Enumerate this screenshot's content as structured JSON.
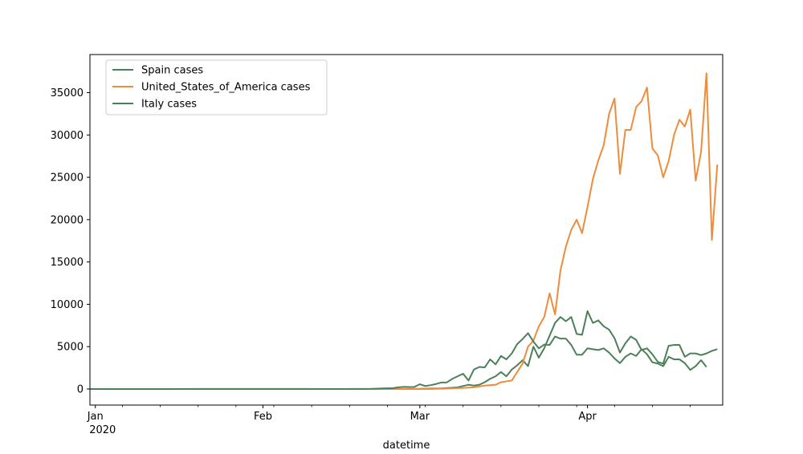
{
  "chart_data": {
    "type": "line",
    "xlabel": "datetime",
    "x_ticks": [
      {
        "date": "2020-01-01",
        "label": "Jan",
        "sublabel": "2020"
      },
      {
        "date": "2020-02-01",
        "label": "Feb",
        "sublabel": ""
      },
      {
        "date": "2020-03-01",
        "label": "Mar",
        "sublabel": ""
      },
      {
        "date": "2020-04-01",
        "label": "Apr",
        "sublabel": ""
      }
    ],
    "xlim": [
      "2019-12-31",
      "2020-04-26"
    ],
    "ylim": [
      -1900,
      39500
    ],
    "y_ticks": [
      0,
      5000,
      10000,
      15000,
      20000,
      25000,
      30000,
      35000
    ],
    "legend_position": "upper-left",
    "series": [
      {
        "name": "Spain cases",
        "color": "#4c8059",
        "points": [
          [
            "2019-12-31",
            0
          ],
          [
            "2020-01-15",
            0
          ],
          [
            "2020-02-01",
            0
          ],
          [
            "2020-02-15",
            0
          ],
          [
            "2020-02-24",
            0
          ],
          [
            "2020-02-26",
            5
          ],
          [
            "2020-02-28",
            10
          ],
          [
            "2020-03-01",
            20
          ],
          [
            "2020-03-03",
            50
          ],
          [
            "2020-03-05",
            70
          ],
          [
            "2020-03-07",
            150
          ],
          [
            "2020-03-08",
            200
          ],
          [
            "2020-03-10",
            500
          ],
          [
            "2020-03-11",
            400
          ],
          [
            "2020-03-12",
            500
          ],
          [
            "2020-03-13",
            800
          ],
          [
            "2020-03-14",
            1200
          ],
          [
            "2020-03-15",
            1500
          ],
          [
            "2020-03-16",
            2000
          ],
          [
            "2020-03-17",
            1500
          ],
          [
            "2020-03-18",
            2300
          ],
          [
            "2020-03-19",
            2800
          ],
          [
            "2020-03-20",
            3400
          ],
          [
            "2020-03-21",
            2700
          ],
          [
            "2020-03-22",
            5000
          ],
          [
            "2020-03-23",
            3700
          ],
          [
            "2020-03-24",
            4800
          ],
          [
            "2020-03-25",
            6300
          ],
          [
            "2020-03-26",
            7800
          ],
          [
            "2020-03-27",
            8500
          ],
          [
            "2020-03-28",
            8000
          ],
          [
            "2020-03-29",
            8500
          ],
          [
            "2020-03-30",
            6500
          ],
          [
            "2020-03-31",
            6400
          ],
          [
            "2020-04-01",
            9200
          ],
          [
            "2020-04-02",
            7800
          ],
          [
            "2020-04-03",
            8100
          ],
          [
            "2020-04-04",
            7400
          ],
          [
            "2020-04-05",
            7000
          ],
          [
            "2020-04-06",
            6000
          ],
          [
            "2020-04-07",
            4300
          ],
          [
            "2020-04-08",
            5400
          ],
          [
            "2020-04-09",
            6200
          ],
          [
            "2020-04-10",
            5800
          ],
          [
            "2020-04-11",
            4600
          ],
          [
            "2020-04-12",
            4800
          ],
          [
            "2020-04-13",
            4100
          ],
          [
            "2020-04-14",
            3200
          ],
          [
            "2020-04-15",
            3000
          ],
          [
            "2020-04-16",
            5100
          ],
          [
            "2020-04-17",
            5200
          ],
          [
            "2020-04-18",
            5200
          ],
          [
            "2020-04-19",
            3800
          ],
          [
            "2020-04-20",
            4200
          ],
          [
            "2020-04-21",
            4200
          ],
          [
            "2020-04-22",
            4000
          ],
          [
            "2020-04-23",
            4200
          ],
          [
            "2020-04-24",
            4500
          ],
          [
            "2020-04-25",
            4700
          ]
        ]
      },
      {
        "name": "United_States_of_America cases",
        "color": "#ef8c3b",
        "points": [
          [
            "2019-12-31",
            0
          ],
          [
            "2020-01-15",
            0
          ],
          [
            "2020-02-01",
            0
          ],
          [
            "2020-02-15",
            0
          ],
          [
            "2020-03-01",
            0
          ],
          [
            "2020-03-03",
            10
          ],
          [
            "2020-03-05",
            30
          ],
          [
            "2020-03-07",
            80
          ],
          [
            "2020-03-09",
            120
          ],
          [
            "2020-03-11",
            200
          ],
          [
            "2020-03-13",
            400
          ],
          [
            "2020-03-15",
            500
          ],
          [
            "2020-03-16",
            800
          ],
          [
            "2020-03-17",
            900
          ],
          [
            "2020-03-18",
            1000
          ],
          [
            "2020-03-19",
            2000
          ],
          [
            "2020-03-20",
            3000
          ],
          [
            "2020-03-21",
            5000
          ],
          [
            "2020-03-22",
            5700
          ],
          [
            "2020-03-23",
            7400
          ],
          [
            "2020-03-24",
            8500
          ],
          [
            "2020-03-25",
            11300
          ],
          [
            "2020-03-26",
            8800
          ],
          [
            "2020-03-27",
            14000
          ],
          [
            "2020-03-28",
            16800
          ],
          [
            "2020-03-29",
            18800
          ],
          [
            "2020-03-30",
            20000
          ],
          [
            "2020-03-31",
            18400
          ],
          [
            "2020-04-01",
            21500
          ],
          [
            "2020-04-02",
            24800
          ],
          [
            "2020-04-03",
            27000
          ],
          [
            "2020-04-04",
            28800
          ],
          [
            "2020-04-05",
            32500
          ],
          [
            "2020-04-06",
            34300
          ],
          [
            "2020-04-07",
            25400
          ],
          [
            "2020-04-08",
            30600
          ],
          [
            "2020-04-09",
            30600
          ],
          [
            "2020-04-10",
            33300
          ],
          [
            "2020-04-11",
            34000
          ],
          [
            "2020-04-12",
            35600
          ],
          [
            "2020-04-13",
            28400
          ],
          [
            "2020-04-14",
            27600
          ],
          [
            "2020-04-15",
            25000
          ],
          [
            "2020-04-16",
            26900
          ],
          [
            "2020-04-17",
            30000
          ],
          [
            "2020-04-18",
            31800
          ],
          [
            "2020-04-19",
            31000
          ],
          [
            "2020-04-20",
            33000
          ],
          [
            "2020-04-21",
            24600
          ],
          [
            "2020-04-22",
            28000
          ],
          [
            "2020-04-23",
            37300
          ],
          [
            "2020-04-24",
            17600
          ],
          [
            "2020-04-25",
            26500
          ]
        ]
      },
      {
        "name": "Italy cases",
        "color": "#4c8059",
        "points": [
          [
            "2019-12-31",
            0
          ],
          [
            "2020-01-15",
            0
          ],
          [
            "2020-01-30",
            2
          ],
          [
            "2020-02-15",
            0
          ],
          [
            "2020-02-21",
            15
          ],
          [
            "2020-02-23",
            60
          ],
          [
            "2020-02-25",
            100
          ],
          [
            "2020-02-26",
            200
          ],
          [
            "2020-02-27",
            250
          ],
          [
            "2020-02-28",
            230
          ],
          [
            "2020-02-29",
            240
          ],
          [
            "2020-03-01",
            560
          ],
          [
            "2020-03-02",
            350
          ],
          [
            "2020-03-03",
            450
          ],
          [
            "2020-03-04",
            590
          ],
          [
            "2020-03-05",
            770
          ],
          [
            "2020-03-06",
            780
          ],
          [
            "2020-03-07",
            1200
          ],
          [
            "2020-03-08",
            1500
          ],
          [
            "2020-03-09",
            1800
          ],
          [
            "2020-03-10",
            1000
          ],
          [
            "2020-03-11",
            2300
          ],
          [
            "2020-03-12",
            2600
          ],
          [
            "2020-03-13",
            2550
          ],
          [
            "2020-03-14",
            3500
          ],
          [
            "2020-03-15",
            2900
          ],
          [
            "2020-03-16",
            3900
          ],
          [
            "2020-03-17",
            3500
          ],
          [
            "2020-03-18",
            4200
          ],
          [
            "2020-03-19",
            5300
          ],
          [
            "2020-03-20",
            5900
          ],
          [
            "2020-03-21",
            6600
          ],
          [
            "2020-03-22",
            5600
          ],
          [
            "2020-03-23",
            4800
          ],
          [
            "2020-03-24",
            5250
          ],
          [
            "2020-03-25",
            5200
          ],
          [
            "2020-03-26",
            6200
          ],
          [
            "2020-03-27",
            5950
          ],
          [
            "2020-03-28",
            5950
          ],
          [
            "2020-03-29",
            5200
          ],
          [
            "2020-03-30",
            4050
          ],
          [
            "2020-03-31",
            4050
          ],
          [
            "2020-04-01",
            4800
          ],
          [
            "2020-04-02",
            4700
          ],
          [
            "2020-04-03",
            4600
          ],
          [
            "2020-04-04",
            4800
          ],
          [
            "2020-04-05",
            4300
          ],
          [
            "2020-04-06",
            3600
          ],
          [
            "2020-04-07",
            3050
          ],
          [
            "2020-04-08",
            3800
          ],
          [
            "2020-04-09",
            4200
          ],
          [
            "2020-04-10",
            3900
          ],
          [
            "2020-04-11",
            4700
          ],
          [
            "2020-04-12",
            4100
          ],
          [
            "2020-04-13",
            3150
          ],
          [
            "2020-04-14",
            3000
          ],
          [
            "2020-04-15",
            2700
          ],
          [
            "2020-04-16",
            3800
          ],
          [
            "2020-04-17",
            3500
          ],
          [
            "2020-04-18",
            3500
          ],
          [
            "2020-04-19",
            3050
          ],
          [
            "2020-04-20",
            2250
          ],
          [
            "2020-04-21",
            2700
          ],
          [
            "2020-04-22",
            3400
          ],
          [
            "2020-04-23",
            2600
          ]
        ]
      }
    ]
  }
}
